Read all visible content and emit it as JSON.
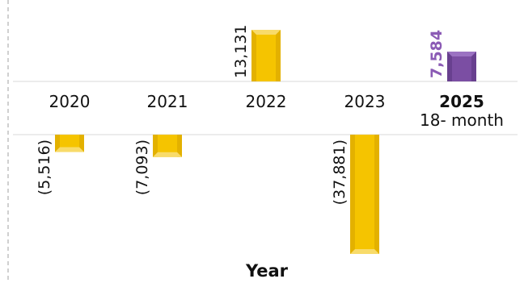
{
  "chart_data": {
    "type": "bar",
    "title": "",
    "xlabel": "Year",
    "ylabel": "",
    "categories": [
      "2020",
      "2021",
      "2022",
      "2023",
      "2025"
    ],
    "category_sublabels": [
      "",
      "",
      "",
      "",
      "18- month"
    ],
    "values": [
      -5516,
      -7093,
      13131,
      -37881,
      7584
    ],
    "data_labels": [
      "(5,516)",
      "(7,093)",
      "13,131",
      "(37,881)",
      "7,584"
    ],
    "highlight_index": 4,
    "ylim": [
      -40000,
      15000
    ],
    "grid": false,
    "colors": {
      "bar": "#F5C400",
      "bar_highlight": "#7B4EA3",
      "label_highlight": "#8B5BB5",
      "axis_line": "#d8d8d8",
      "left_border": "#b0b0b0"
    }
  }
}
